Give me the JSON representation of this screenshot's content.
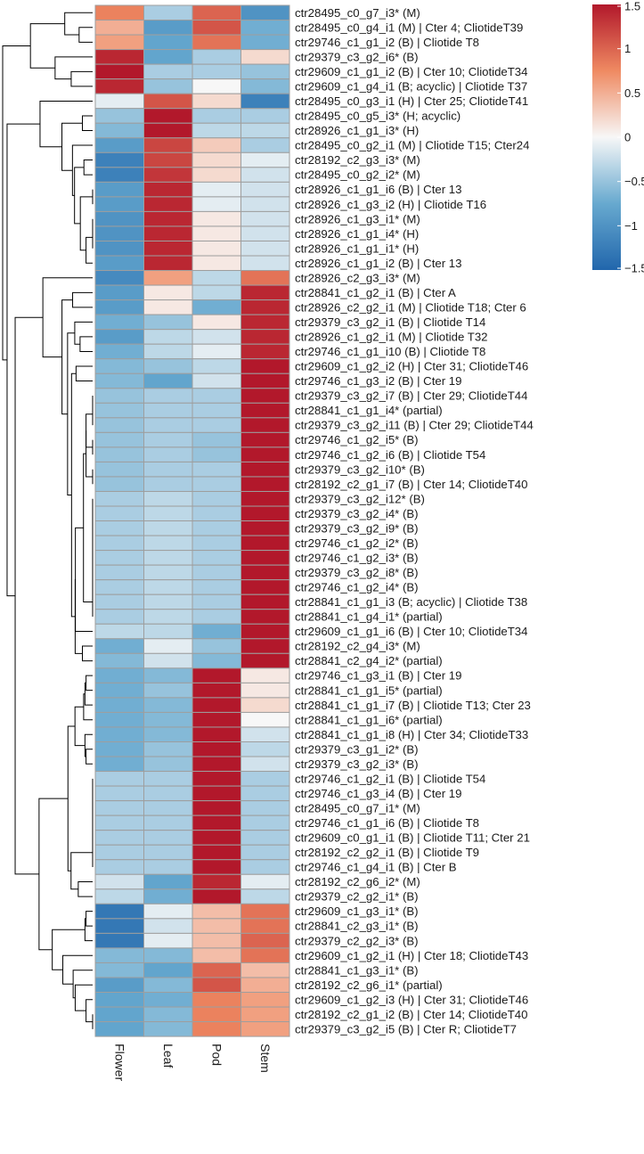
{
  "chart_data": {
    "type": "heatmap",
    "title": "",
    "columns": [
      "Flower",
      "Leaf",
      "Pod",
      "Stem"
    ],
    "rows": [
      "ctr28495_c0_g7_i3* (M)",
      "ctr28495_c0_g4_i1 (M) | Cter 4; CliotideT39",
      "ctr29746_c1_g1_i2 (B) | Cliotide T8",
      "ctr29379_c3_g2_i6* (B)",
      "ctr29609_c1_g1_i2 (B) | Cter 10; CliotideT34",
      "ctr29609_c1_g4_i1 (B; acyclic) | Cliotide T37",
      "ctr28495_c0_g3_i1 (H) | Cter 25; CliotideT41",
      "ctr28495_c0_g5_i3* (H; acyclic)",
      "ctr28926_c1_g1_i3* (H)",
      "ctr28495_c0_g2_i1 (M) | Cliotide T15; Cter24",
      "ctr28192_c2_g3_i3* (M)",
      "ctr28495_c0_g2_i2* (M)",
      "ctr28926_c1_g1_i6 (B) | Cter 13",
      "ctr28926_c1_g3_i2 (H) | Cliotide T16",
      "ctr28926_c1_g3_i1* (M)",
      "ctr28926_c1_g1_i4* (H)",
      "ctr28926_c1_g1_i1* (H)",
      "ctr28926_c1_g1_i2 (B) | Cter 13",
      "ctr28926_c2_g3_i3* (M)",
      "ctr28841_c1_g2_i1 (B) | Cter A",
      "ctr28926_c2_g2_i1 (M) | Cliotide T18; Cter 6",
      "ctr29379_c3_g2_i1 (B) | Cliotide T14",
      "ctr28926_c1_g2_i1 (M) | Cliotide T32",
      "ctr29746_c1_g1_i10 (B) | Cliotide T8",
      "ctr29609_c1_g2_i2 (H) | Cter 31; CliotideT46",
      "ctr29746_c1_g3_i2 (B) | Cter 19",
      "ctr29379_c3_g2_i7 (B) | Cter 29; CliotideT44",
      "ctr28841_c1_g1_i4* (partial)",
      "ctr29379_c3_g2_i11 (B) | Cter 29; CliotideT44",
      "ctr29746_c1_g2_i5* (B)",
      "ctr29746_c1_g2_i6 (B) | Cliotide T54",
      "ctr29379_c3_g2_i10* (B)",
      "ctr28192_c2_g1_i7 (B) | Cter 14; CliotideT40",
      "ctr29379_c3_g2_i12* (B)",
      "ctr29379_c3_g2_i4* (B)",
      "ctr29379_c3_g2_i9* (B)",
      "ctr29746_c1_g2_i2* (B)",
      "ctr29746_c1_g2_i3* (B)",
      "ctr29379_c3_g2_i8* (B)",
      "ctr29746_c1_g2_i4* (B)",
      "ctr28841_c1_g1_i3 (B; acyclic) | Cliotide T38",
      "ctr28841_c1_g4_i1* (partial)",
      "ctr29609_c1_g1_i6 (B) | Cter 10; CliotideT34",
      "ctr28192_c2_g4_i3* (M)",
      "ctr28841_c2_g4_i2* (partial)",
      "ctr29746_c1_g3_i1 (B) | Cter 19",
      "ctr28841_c1_g1_i5* (partial)",
      "ctr28841_c1_g1_i7 (B) | Cliotide T13; Cter 23",
      "ctr28841_c1_g1_i6* (partial)",
      "ctr28841_c1_g1_i8 (H) | Cter 34; CliotideT33",
      "ctr29379_c3_g1_i2* (B)",
      "ctr29379_c3_g2_i3* (B)",
      "ctr29746_c1_g2_i1 (B) | Cliotide T54",
      "ctr29746_c1_g3_i4 (B) | Cter 19",
      "ctr28495_c0_g7_i1* (M)",
      "ctr29746_c1_g1_i6 (B) | Cliotide T8",
      "ctr29609_c0_g1_i1 (B) | Cliotide T11; Cter 21",
      "ctr28192_c2_g2_i1 (B) | Cliotide T9",
      "ctr29746_c1_g4_i1 (B) | Cter B",
      "ctr28192_c2_g6_i2* (M)",
      "ctr29379_c2_g2_i1* (B)",
      "ctr29609_c1_g3_i1* (B)",
      "ctr28841_c2_g3_i1* (B)",
      "ctr29379_c2_g2_i3* (B)",
      "ctr29609_c1_g2_i1 (H) | Cter 18; CliotideT43",
      "ctr28841_c1_g3_i1* (B)",
      "ctr28192_c2_g6_i1* (partial)",
      "ctr29609_c1_g2_i3 (H) | Cter 31; CliotideT46",
      "ctr28192_c2_g1_i2 (B) | Cter 14; CliotideT40",
      "ctr29379_c3_g2_i5 (B) | Cter R; CliotideT7"
    ],
    "values": [
      [
        0.8,
        -0.4,
        1.0,
        -1.0
      ],
      [
        0.5,
        -0.9,
        1.1,
        -0.7
      ],
      [
        0.6,
        -0.8,
        0.9,
        -0.7
      ],
      [
        1.4,
        -0.8,
        -0.4,
        0.2
      ],
      [
        1.5,
        -0.4,
        -0.4,
        -0.5
      ],
      [
        1.4,
        -0.5,
        0.0,
        -0.6
      ],
      [
        -0.1,
        1.1,
        0.2,
        -1.2
      ],
      [
        -0.5,
        1.5,
        -0.4,
        -0.4
      ],
      [
        -0.6,
        1.5,
        -0.3,
        -0.3
      ],
      [
        -0.9,
        1.2,
        0.3,
        -0.4
      ],
      [
        -1.2,
        1.2,
        0.2,
        -0.1
      ],
      [
        -1.2,
        1.3,
        0.2,
        -0.2
      ],
      [
        -0.9,
        1.4,
        -0.1,
        -0.2
      ],
      [
        -0.9,
        1.4,
        -0.1,
        -0.2
      ],
      [
        -1.0,
        1.4,
        0.1,
        -0.2
      ],
      [
        -1.0,
        1.4,
        0.1,
        -0.2
      ],
      [
        -1.0,
        1.4,
        0.1,
        -0.2
      ],
      [
        -0.9,
        1.4,
        0.1,
        -0.2
      ],
      [
        -1.1,
        0.6,
        -0.3,
        0.9
      ],
      [
        -0.9,
        0.1,
        -0.3,
        1.4
      ],
      [
        -0.9,
        0.1,
        -0.7,
        1.4
      ],
      [
        -0.7,
        -0.5,
        0.1,
        1.4
      ],
      [
        -0.9,
        -0.3,
        -0.2,
        1.4
      ],
      [
        -0.7,
        -0.3,
        -0.1,
        1.4
      ],
      [
        -0.6,
        -0.5,
        -0.3,
        1.5
      ],
      [
        -0.6,
        -0.8,
        -0.2,
        1.5
      ],
      [
        -0.5,
        -0.4,
        -0.4,
        1.5
      ],
      [
        -0.5,
        -0.4,
        -0.4,
        1.5
      ],
      [
        -0.5,
        -0.4,
        -0.4,
        1.5
      ],
      [
        -0.5,
        -0.4,
        -0.5,
        1.5
      ],
      [
        -0.5,
        -0.4,
        -0.5,
        1.5
      ],
      [
        -0.5,
        -0.4,
        -0.4,
        1.5
      ],
      [
        -0.5,
        -0.4,
        -0.4,
        1.5
      ],
      [
        -0.4,
        -0.3,
        -0.4,
        1.5
      ],
      [
        -0.4,
        -0.3,
        -0.4,
        1.5
      ],
      [
        -0.4,
        -0.3,
        -0.4,
        1.5
      ],
      [
        -0.4,
        -0.3,
        -0.4,
        1.5
      ],
      [
        -0.4,
        -0.3,
        -0.4,
        1.5
      ],
      [
        -0.4,
        -0.3,
        -0.4,
        1.5
      ],
      [
        -0.4,
        -0.3,
        -0.4,
        1.5
      ],
      [
        -0.4,
        -0.3,
        -0.4,
        1.5
      ],
      [
        -0.4,
        -0.3,
        -0.4,
        1.5
      ],
      [
        -0.3,
        -0.3,
        -0.7,
        1.5
      ],
      [
        -0.7,
        -0.1,
        -0.5,
        1.5
      ],
      [
        -0.6,
        -0.2,
        -0.6,
        1.5
      ],
      [
        -0.7,
        -0.6,
        1.5,
        0.1
      ],
      [
        -0.7,
        -0.5,
        1.5,
        0.1
      ],
      [
        -0.7,
        -0.6,
        1.5,
        0.2
      ],
      [
        -0.7,
        -0.6,
        1.5,
        0.0
      ],
      [
        -0.7,
        -0.6,
        1.5,
        -0.2
      ],
      [
        -0.7,
        -0.5,
        1.5,
        -0.3
      ],
      [
        -0.7,
        -0.5,
        1.5,
        -0.2
      ],
      [
        -0.4,
        -0.4,
        1.5,
        -0.4
      ],
      [
        -0.4,
        -0.4,
        1.5,
        -0.4
      ],
      [
        -0.4,
        -0.4,
        1.5,
        -0.4
      ],
      [
        -0.4,
        -0.4,
        1.5,
        -0.4
      ],
      [
        -0.4,
        -0.4,
        1.5,
        -0.4
      ],
      [
        -0.4,
        -0.4,
        1.5,
        -0.4
      ],
      [
        -0.4,
        -0.4,
        1.5,
        -0.4
      ],
      [
        -0.2,
        -0.8,
        1.4,
        -0.1
      ],
      [
        -0.3,
        -0.7,
        1.5,
        -0.3
      ],
      [
        -1.3,
        -0.1,
        0.4,
        0.9
      ],
      [
        -1.3,
        -0.2,
        0.4,
        0.9
      ],
      [
        -1.3,
        -0.1,
        0.4,
        1.0
      ],
      [
        -0.6,
        -0.6,
        0.4,
        0.9
      ],
      [
        -0.6,
        -0.8,
        1.0,
        0.4
      ],
      [
        -0.9,
        -0.6,
        1.1,
        0.5
      ],
      [
        -0.8,
        -0.7,
        0.8,
        0.6
      ],
      [
        -0.8,
        -0.6,
        0.8,
        0.6
      ],
      [
        -0.8,
        -0.6,
        0.8,
        0.6
      ]
    ],
    "color_scale": {
      "min": -1.5,
      "max": 1.5,
      "low_color": "#2166ac",
      "mid_color": "#f7f7f7",
      "high_color": "#b2182b",
      "ticks": [
        1.5,
        1,
        0.5,
        0,
        -0.5,
        -1,
        -1.5
      ],
      "tick_labels": [
        "1.5",
        "1",
        "0.5",
        "0",
        "−0.5",
        "−1",
        "−1.5"
      ]
    },
    "row_dendrogram": "left",
    "legend_position": "top-right",
    "cell_border_color": "#9e9e9e"
  }
}
